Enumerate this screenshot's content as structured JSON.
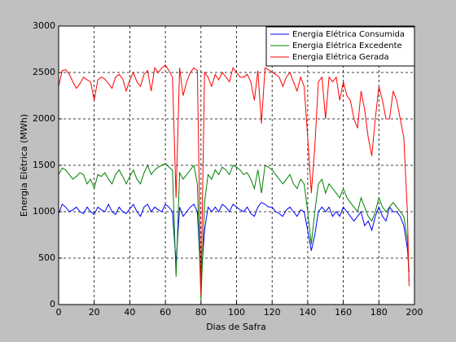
{
  "chart_data": {
    "type": "line",
    "xlabel": "Dias de Safra",
    "ylabel": "Energia Elétrica (MWh)",
    "xlim": [
      0,
      200
    ],
    "xticks": [
      0,
      20,
      40,
      60,
      80,
      100,
      120,
      140,
      160,
      180,
      200
    ],
    "ylim": [
      0,
      3000
    ],
    "yticks": [
      0,
      500,
      1000,
      1500,
      2000,
      2500,
      3000
    ],
    "grid": true,
    "legend": "upper right",
    "x": [
      0,
      2,
      4,
      6,
      8,
      10,
      12,
      14,
      16,
      18,
      20,
      22,
      24,
      26,
      28,
      30,
      32,
      34,
      36,
      38,
      40,
      42,
      44,
      46,
      48,
      50,
      52,
      54,
      56,
      58,
      60,
      62,
      64,
      66,
      68,
      70,
      72,
      74,
      76,
      78,
      80,
      82,
      84,
      86,
      88,
      90,
      92,
      94,
      96,
      98,
      100,
      102,
      104,
      106,
      108,
      110,
      112,
      114,
      116,
      118,
      120,
      122,
      124,
      126,
      128,
      130,
      132,
      134,
      136,
      138,
      140,
      142,
      144,
      146,
      148,
      150,
      152,
      154,
      156,
      158,
      160,
      162,
      164,
      166,
      168,
      170,
      172,
      174,
      176,
      178,
      180,
      182,
      184,
      186,
      188,
      190,
      192,
      194,
      196,
      197
    ],
    "series": [
      {
        "name": "Energia Elétrica Consumida",
        "color": "#0000ff",
        "values": [
          980,
          1080,
          1050,
          1000,
          1020,
          1050,
          1000,
          980,
          1050,
          1000,
          970,
          1050,
          1020,
          1000,
          1080,
          1000,
          970,
          1050,
          1000,
          980,
          1030,
          1080,
          1000,
          950,
          1050,
          1080,
          1000,
          1050,
          1020,
          1000,
          1080,
          1050,
          1000,
          450,
          1050,
          950,
          1000,
          1050,
          1080,
          1000,
          250,
          800,
          1050,
          1000,
          1050,
          1000,
          1080,
          1050,
          1000,
          1080,
          1050,
          1020,
          1000,
          1050,
          980,
          950,
          1050,
          1100,
          1080,
          1050,
          1050,
          1000,
          980,
          950,
          1020,
          1050,
          1000,
          950,
          1020,
          1000,
          800,
          580,
          750,
          1000,
          1050,
          1000,
          1050,
          950,
          1000,
          950,
          1050,
          1000,
          950,
          900,
          950,
          1000,
          850,
          900,
          800,
          950,
          1050,
          950,
          900,
          1050,
          1000,
          1000,
          950,
          850,
          600,
          350
        ]
      },
      {
        "name": "Energia Elétrica Excedente",
        "color": "#008000",
        "values": [
          1400,
          1470,
          1450,
          1400,
          1350,
          1380,
          1420,
          1400,
          1300,
          1350,
          1250,
          1400,
          1380,
          1420,
          1350,
          1300,
          1400,
          1450,
          1380,
          1300,
          1380,
          1450,
          1350,
          1300,
          1420,
          1500,
          1400,
          1450,
          1480,
          1500,
          1520,
          1480,
          1450,
          300,
          1420,
          1350,
          1400,
          1450,
          1500,
          1300,
          50,
          1100,
          1400,
          1350,
          1450,
          1400,
          1480,
          1450,
          1400,
          1500,
          1480,
          1450,
          1400,
          1420,
          1350,
          1250,
          1450,
          1200,
          1500,
          1480,
          1450,
          1400,
          1350,
          1300,
          1350,
          1400,
          1300,
          1250,
          1350,
          1300,
          1000,
          650,
          1000,
          1300,
          1350,
          1200,
          1300,
          1250,
          1200,
          1150,
          1250,
          1150,
          1100,
          1050,
          1000,
          1150,
          1050,
          950,
          900,
          1000,
          1150,
          1050,
          1000,
          1050,
          1100,
          1050,
          1000,
          950,
          700,
          250
        ]
      },
      {
        "name": "Energia Elétrica Gerada",
        "color": "#ff0000",
        "values": [
          2350,
          2520,
          2530,
          2480,
          2400,
          2330,
          2380,
          2450,
          2420,
          2400,
          2200,
          2420,
          2450,
          2430,
          2380,
          2330,
          2450,
          2480,
          2430,
          2300,
          2420,
          2500,
          2400,
          2350,
          2480,
          2520,
          2300,
          2550,
          2500,
          2550,
          2580,
          2520,
          2450,
          1150,
          2550,
          2250,
          2400,
          2500,
          2550,
          2520,
          100,
          2500,
          2450,
          2350,
          2480,
          2420,
          2500,
          2450,
          2400,
          2550,
          2500,
          2450,
          2450,
          2480,
          2400,
          2200,
          2520,
          1950,
          2550,
          2530,
          2500,
          2480,
          2450,
          2350,
          2450,
          2500,
          2400,
          2300,
          2450,
          2350,
          1800,
          1200,
          1700,
          2400,
          2450,
          2000,
          2450,
          2400,
          2450,
          2200,
          2400,
          2250,
          2200,
          2000,
          1900,
          2300,
          2100,
          1800,
          1600,
          2000,
          2350,
          2200,
          2000,
          2000,
          2300,
          2200,
          2000,
          1800,
          1000,
          200
        ]
      }
    ]
  }
}
